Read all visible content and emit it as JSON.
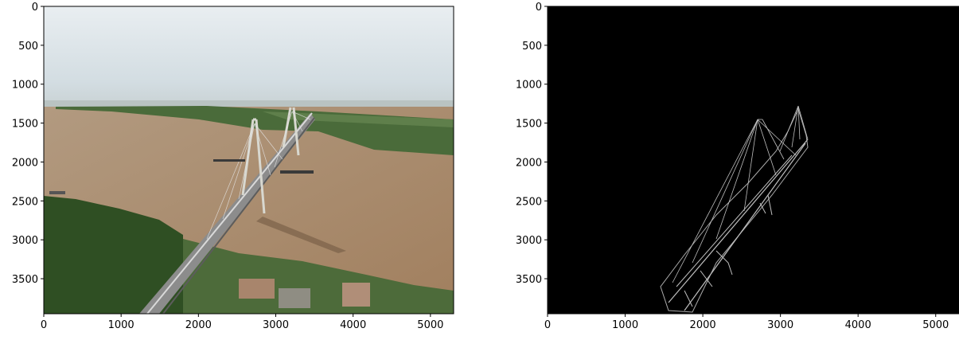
{
  "panels": [
    {
      "id": "photo",
      "x_ticks": [
        "0",
        "1000",
        "2000",
        "3000",
        "4000",
        "5000"
      ],
      "y_ticks": [
        "0",
        "500",
        "1000",
        "1500",
        "2000",
        "2500",
        "3000",
        "3500"
      ],
      "x_tick_values": [
        0,
        1000,
        2000,
        3000,
        4000,
        5000
      ],
      "y_tick_values": [
        0,
        500,
        1000,
        1500,
        2000,
        2500,
        3000,
        3500
      ],
      "xlim": [
        0,
        5300
      ],
      "ylim": [
        0,
        3950
      ]
    },
    {
      "id": "mask",
      "x_ticks": [
        "0",
        "1000",
        "2000",
        "3000",
        "4000",
        "5000"
      ],
      "y_ticks": [
        "0",
        "500",
        "1000",
        "1500",
        "2000",
        "2500",
        "3000",
        "3500"
      ],
      "x_tick_values": [
        0,
        1000,
        2000,
        3000,
        4000,
        5000
      ],
      "y_tick_values": [
        0,
        500,
        1000,
        1500,
        2000,
        2500,
        3000,
        3500
      ],
      "xlim": [
        0,
        5300
      ],
      "ylim": [
        0,
        3950
      ]
    }
  ],
  "colors": {
    "sky": "#dde6ea",
    "river": "#a98b6d",
    "vegetation": "#3b5a2c",
    "mask_bg": "#000000",
    "mask_lines": "#ffffff"
  }
}
